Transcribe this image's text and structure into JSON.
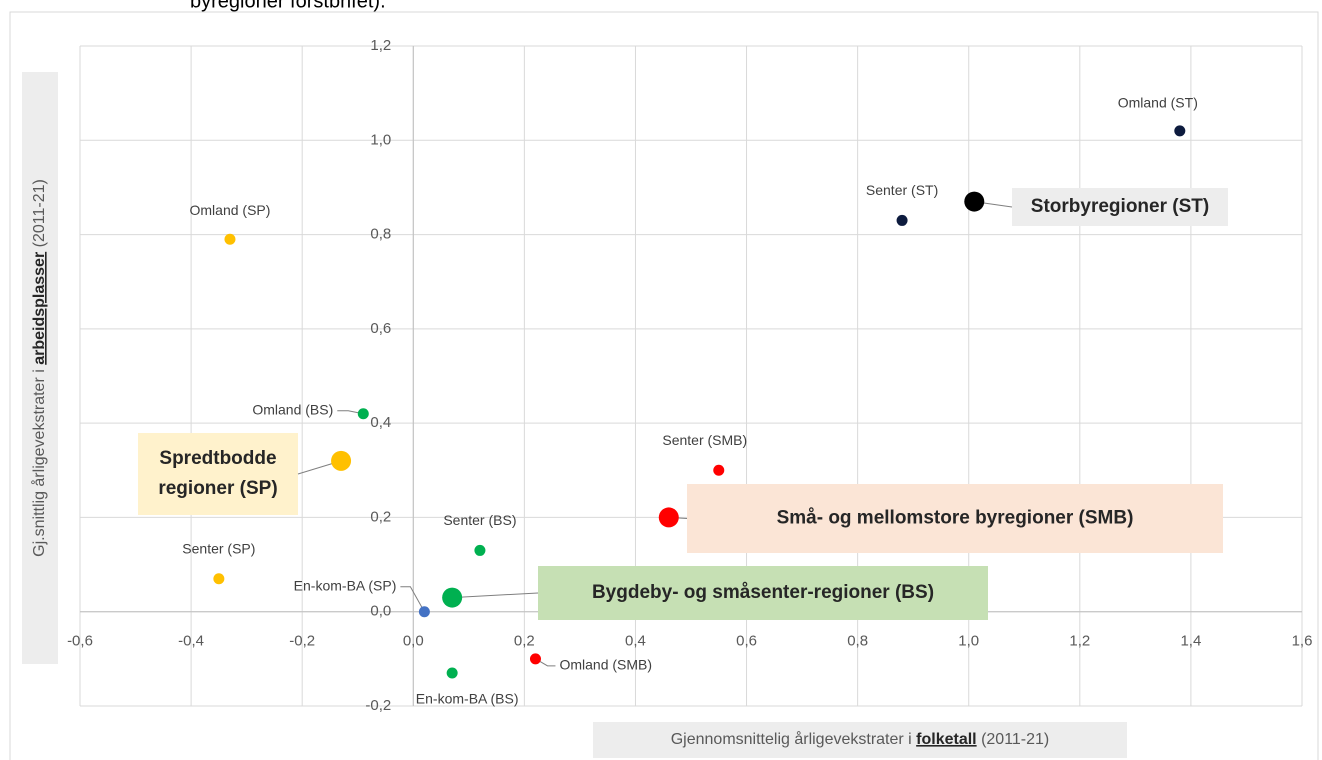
{
  "chart_data": {
    "type": "scatter",
    "caption": "byregioner forstbrifet).",
    "x_label": [
      "Gjennomsnittelig årligevekstrater i ",
      "folketall",
      " (2011-21)"
    ],
    "y_label": [
      "Gj.snittlig årligevekstrater i ",
      "arbeidsplasser",
      " (2011-21)"
    ],
    "xlim": [
      -0.6,
      1.6
    ],
    "ylim": [
      -0.2,
      1.2
    ],
    "xticks": [
      {
        "value": -0.6,
        "label": "-0,6"
      },
      {
        "value": -0.4,
        "label": "-0,4"
      },
      {
        "value": -0.2,
        "label": "-0,2"
      },
      {
        "value": 0,
        "label": "0,0"
      },
      {
        "value": 0.2,
        "label": "0,2"
      },
      {
        "value": 0.4,
        "label": "0,4"
      },
      {
        "value": 0.6,
        "label": "0,6"
      },
      {
        "value": 0.8,
        "label": "0,8"
      },
      {
        "value": 1.0,
        "label": "1,0"
      },
      {
        "value": 1.2,
        "label": "1,2"
      },
      {
        "value": 1.4,
        "label": "1,4"
      },
      {
        "value": 1.6,
        "label": "1,6"
      }
    ],
    "yticks": [
      {
        "value": -0.2,
        "label": "-0,2"
      },
      {
        "value": 0,
        "label": "0,0"
      },
      {
        "value": 0.2,
        "label": "0,2"
      },
      {
        "value": 0.4,
        "label": "0,4"
      },
      {
        "value": 0.6,
        "label": "0,6"
      },
      {
        "value": 0.8,
        "label": "0,8"
      },
      {
        "value": 1.0,
        "label": "1,0"
      },
      {
        "value": 1.2,
        "label": "1,2"
      }
    ],
    "grid": true,
    "points": [
      {
        "label": "Omland (ST)",
        "x": 1.38,
        "y": 1.02,
        "color": "#0d1b3e",
        "size": "small"
      },
      {
        "label": "Senter  (ST)",
        "x": 0.88,
        "y": 0.83,
        "color": "#0d1b3e",
        "size": "small"
      },
      {
        "label": "Storbyregioner (ST)",
        "x": 1.01,
        "y": 0.87,
        "color": "#000000",
        "size": "large",
        "label_bg": "#ededed"
      },
      {
        "label": "Omland (SP)",
        "x": -0.33,
        "y": 0.79,
        "color": "#ffc000",
        "size": "small"
      },
      {
        "label": "Omland (BS)",
        "x": -0.09,
        "y": 0.42,
        "color": "#00b050",
        "size": "small"
      },
      {
        "label": [
          "Spredtbodde",
          "regioner (SP)"
        ],
        "x": -0.13,
        "y": 0.32,
        "color": "#ffc000",
        "size": "large",
        "label_bg": "#fff2cc"
      },
      {
        "label": "Senter  (SMB)",
        "x": 0.55,
        "y": 0.3,
        "color": "#ff0000",
        "size": "small"
      },
      {
        "label": "Små- og mellomstore byregioner (SMB)",
        "x": 0.46,
        "y": 0.2,
        "color": "#ff0000",
        "size": "large",
        "label_bg": "#fbe5d6"
      },
      {
        "label": "Senter  (BS)",
        "x": 0.12,
        "y": 0.13,
        "color": "#00b050",
        "size": "small"
      },
      {
        "label": "Senter  (SP)",
        "x": -0.35,
        "y": 0.07,
        "color": "#ffc000",
        "size": "small"
      },
      {
        "label": "Bygdeby- og småsenter-regioner (BS)",
        "x": 0.07,
        "y": 0.03,
        "color": "#00b050",
        "size": "large",
        "label_bg": "#c6e0b4"
      },
      {
        "label": "En-kom-BA (SP)",
        "x": 0.02,
        "y": 0.0,
        "color": "#4472c4",
        "size": "small"
      },
      {
        "label": "En-kom-BA  (BS)",
        "x": 0.07,
        "y": -0.13,
        "color": "#00b050",
        "size": "small"
      },
      {
        "label": "Omland (SMB)",
        "x": 0.22,
        "y": -0.1,
        "color": "#ff0000",
        "size": "small"
      }
    ]
  }
}
